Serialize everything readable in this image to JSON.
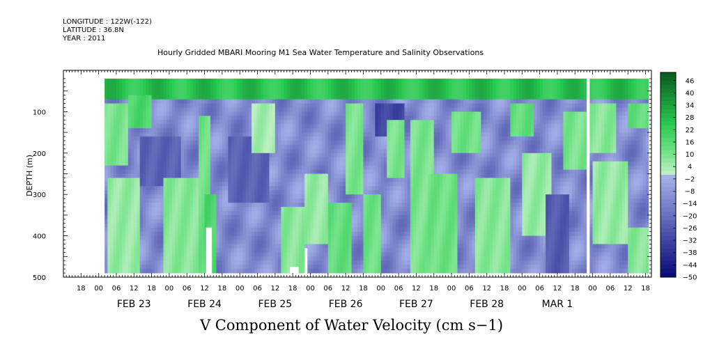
{
  "header": {
    "longitude": "LONGITUDE : 122W(-122)",
    "latitude": "LATITUDE : 36.8N",
    "year": "YEAR : 2011"
  },
  "chart_data": {
    "type": "heatmap",
    "title": "Hourly Gridded MBARI Mooring M1 Sea Water Temperature and Salinity Observations",
    "xlabel": "V Component of Water Velocity (cm s−1)",
    "ylabel": "DEPTH (m)",
    "y_range": [
      0,
      500
    ],
    "y_ticks": [
      100,
      200,
      300,
      400,
      500
    ],
    "x_range_hours": [
      -12,
      188
    ],
    "x_hour_labels": [
      "00",
      "06",
      "12",
      "18"
    ],
    "day_labels": [
      "FEB 23",
      "FEB 24",
      "FEB 25",
      "FEB 26",
      "FEB 27",
      "FEB 28",
      "MAR  1"
    ],
    "colorbar": {
      "levels": [
        46,
        40,
        34,
        28,
        22,
        16,
        10,
        4,
        -2,
        -8,
        -14,
        -20,
        -26,
        -32,
        -38,
        -44,
        -50
      ],
      "range": [
        -50,
        50
      ]
    },
    "data_extent": {
      "start_hour": 2,
      "end_hour": 187,
      "depth_top": 20,
      "depth_bottom": 485
    },
    "surface_layer": {
      "depth_to": 70,
      "value": 26
    },
    "interior_value": -12,
    "bands": [
      {
        "t0": 2,
        "t1": 10,
        "d0": 80,
        "d1": 230,
        "v": 10
      },
      {
        "t0": 10,
        "t1": 18,
        "d0": 60,
        "d1": 140,
        "v": 18
      },
      {
        "t0": 14,
        "t1": 28,
        "d0": 160,
        "d1": 280,
        "v": -24
      },
      {
        "t0": 3,
        "t1": 14,
        "d0": 260,
        "d1": 485,
        "v": 6
      },
      {
        "t0": 22,
        "t1": 34,
        "d0": 260,
        "d1": 485,
        "v": 8
      },
      {
        "t0": 34,
        "t1": 38,
        "d0": 110,
        "d1": 485,
        "v": 12
      },
      {
        "t0": 36,
        "t1": 40,
        "d0": 300,
        "d1": 485,
        "v": 18
      },
      {
        "t0": 44,
        "t1": 58,
        "d0": 160,
        "d1": 320,
        "v": -24
      },
      {
        "t0": 52,
        "t1": 60,
        "d0": 80,
        "d1": 200,
        "v": 4
      },
      {
        "t0": 62,
        "t1": 70,
        "d0": 330,
        "d1": 485,
        "v": 8
      },
      {
        "t0": 70,
        "t1": 78,
        "d0": 250,
        "d1": 420,
        "v": 6
      },
      {
        "t0": 78,
        "t1": 86,
        "d0": 320,
        "d1": 485,
        "v": 14
      },
      {
        "t0": 84,
        "t1": 90,
        "d0": 80,
        "d1": 300,
        "v": 10
      },
      {
        "t0": 94,
        "t1": 104,
        "d0": 80,
        "d1": 160,
        "v": -32
      },
      {
        "t0": 90,
        "t1": 96,
        "d0": 300,
        "d1": 485,
        "v": 12
      },
      {
        "t0": 98,
        "t1": 104,
        "d0": 120,
        "d1": 260,
        "v": 10
      },
      {
        "t0": 106,
        "t1": 114,
        "d0": 120,
        "d1": 485,
        "v": 10
      },
      {
        "t0": 112,
        "t1": 122,
        "d0": 250,
        "d1": 485,
        "v": 12
      },
      {
        "t0": 120,
        "t1": 130,
        "d0": 100,
        "d1": 200,
        "v": 12
      },
      {
        "t0": 128,
        "t1": 140,
        "d0": 260,
        "d1": 485,
        "v": 8
      },
      {
        "t0": 140,
        "t1": 148,
        "d0": 80,
        "d1": 160,
        "v": 14
      },
      {
        "t0": 144,
        "t1": 154,
        "d0": 200,
        "d1": 400,
        "v": 6
      },
      {
        "t0": 152,
        "t1": 160,
        "d0": 300,
        "d1": 485,
        "v": -26
      },
      {
        "t0": 158,
        "t1": 166,
        "d0": 100,
        "d1": 240,
        "v": 10
      },
      {
        "t0": 166,
        "t1": 176,
        "d0": 80,
        "d1": 200,
        "v": 8
      },
      {
        "t0": 168,
        "t1": 180,
        "d0": 220,
        "d1": 420,
        "v": 6
      },
      {
        "t0": 180,
        "t1": 187,
        "d0": 80,
        "d1": 140,
        "v": 14
      },
      {
        "t0": 180,
        "t1": 187,
        "d0": 380,
        "d1": 485,
        "v": 8
      }
    ],
    "gaps": [
      {
        "t0": 36.5,
        "t1": 38.5,
        "d0": 380,
        "d1": 500
      },
      {
        "t0": 65,
        "t1": 68,
        "d0": 475,
        "d1": 500
      },
      {
        "t0": 70,
        "t1": 71,
        "d0": 430,
        "d1": 500
      },
      {
        "t0": 166,
        "t1": 167,
        "d0": 20,
        "d1": 500
      }
    ]
  }
}
